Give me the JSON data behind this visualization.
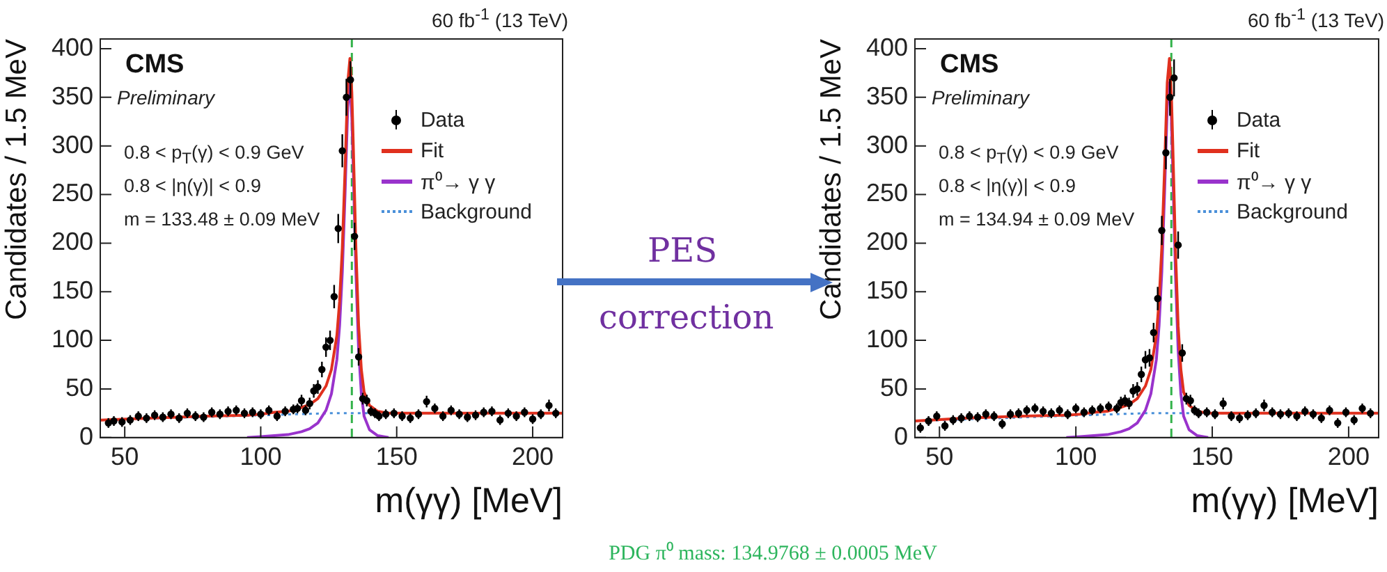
{
  "chart_data": [
    {
      "type": "line",
      "title": "CMS",
      "subtitle": "Preliminary",
      "xlabel": "m(γγ) [MeV]",
      "ylabel": "Candidates / 1.5 MeV",
      "annotations": [
        "60 fb$^{-1}$ (13 TeV)",
        "0.8 < p$_{T}$(γ) < 0.9 GeV",
        "0.8 < |η(γ)| < 0.9",
        "m = 133.48 ± 0.09 MeV"
      ],
      "xlim": [
        41,
        211
      ],
      "xticks": [
        50,
        100,
        150,
        200
      ],
      "ylim": [
        0,
        410
      ],
      "yticks": [
        0,
        50,
        100,
        150,
        200,
        250,
        300,
        350,
        400
      ],
      "grid": false,
      "legend": "top right",
      "ref_lines": [
        {
          "axis": "x",
          "value": 133.5,
          "color": "#33b24a",
          "line_style": "dashed"
        }
      ],
      "series": [
        {
          "name": "Background",
          "type": "line",
          "color": "#4a90d9",
          "line_style": "dotted",
          "marker": "none",
          "x": [
            41,
            125,
            211
          ],
          "values": [
            18,
            25,
            25
          ]
        },
        {
          "name": "π⁰→ γ γ",
          "type": "line",
          "color": "#9933cc",
          "line_style": "solid",
          "marker": "none",
          "x": [
            95,
            100,
            105,
            110,
            115,
            118,
            121,
            124,
            126,
            128,
            129,
            130,
            131,
            132,
            132.8,
            133.5,
            134,
            135,
            136,
            137,
            138,
            140,
            143,
            147
          ],
          "values": [
            0,
            1,
            2,
            3,
            6,
            9,
            15,
            28,
            45,
            80,
            115,
            170,
            250,
            340,
            365,
            330,
            280,
            170,
            90,
            45,
            22,
            8,
            2,
            0
          ]
        },
        {
          "name": "Fit",
          "type": "line",
          "color": "#e0301e",
          "line_style": "solid",
          "marker": "none",
          "x": [
            41,
            60,
            80,
            95,
            100,
            105,
            110,
            115,
            118,
            121,
            124,
            126,
            128,
            129,
            130,
            131,
            132,
            132.8,
            133.5,
            134,
            135,
            136,
            137,
            138,
            140,
            143,
            147,
            160,
            211
          ],
          "values": [
            18,
            20,
            22,
            23,
            24,
            26,
            27,
            31,
            34,
            40,
            53,
            70,
            105,
            140,
            195,
            275,
            365,
            390,
            355,
            305,
            195,
            115,
            70,
            47,
            33,
            27,
            25,
            25,
            25
          ]
        },
        {
          "name": "Data",
          "type": "scatter",
          "color": "#000000",
          "marker": "circle",
          "x": [
            44,
            46,
            49,
            52,
            55,
            58,
            61,
            64,
            67,
            70,
            73,
            76,
            79,
            82,
            85,
            88,
            91,
            94,
            97,
            100,
            103,
            106,
            109,
            112,
            113.5,
            115,
            116.5,
            118,
            119.5,
            121,
            122.5,
            124,
            125.5,
            127,
            128.5,
            130,
            131.5,
            133,
            134.5,
            136,
            137.5,
            139,
            140.5,
            142,
            143.5,
            146,
            149,
            152,
            155,
            158,
            161,
            164,
            167,
            170,
            173,
            176,
            179,
            182,
            185,
            188,
            191,
            194,
            197,
            200,
            203,
            206,
            208.5
          ],
          "values": [
            15,
            17,
            16,
            18,
            22,
            20,
            23,
            21,
            24,
            20,
            25,
            22,
            21,
            26,
            24,
            27,
            28,
            25,
            26,
            24,
            28,
            22,
            27,
            29,
            30,
            38,
            28,
            35,
            48,
            52,
            70,
            93,
            100,
            145,
            215,
            295,
            350,
            368,
            207,
            83,
            40,
            38,
            27,
            25,
            22,
            24,
            25,
            22,
            20,
            24,
            37,
            30,
            22,
            28,
            24,
            21,
            23,
            26,
            27,
            18,
            25,
            22,
            26,
            19,
            24,
            33,
            25
          ],
          "errors": [
            5,
            5,
            5,
            5,
            5,
            5,
            5,
            5,
            5,
            5,
            5,
            5,
            5,
            5,
            5,
            5,
            5,
            5,
            5,
            5,
            5,
            5,
            5,
            5,
            5,
            6,
            5,
            6,
            7,
            7,
            8,
            10,
            10,
            12,
            15,
            17,
            19,
            19,
            14,
            9,
            6,
            6,
            5,
            5,
            5,
            5,
            5,
            5,
            5,
            5,
            6,
            5,
            5,
            5,
            5,
            5,
            5,
            5,
            5,
            5,
            5,
            5,
            5,
            5,
            5,
            6,
            5
          ]
        }
      ]
    },
    {
      "type": "line",
      "title": "CMS",
      "subtitle": "Preliminary",
      "xlabel": "m(γγ) [MeV]",
      "ylabel": "Candidates / 1.5 MeV",
      "annotations": [
        "60 fb$^{-1}$ (13 TeV)",
        "0.8 < p$_{T}$(γ) < 0.9 GeV",
        "0.8 < |η(γ)| < 0.9",
        "m = 134.94 ± 0.09 MeV"
      ],
      "xlim": [
        41,
        211
      ],
      "xticks": [
        50,
        100,
        150,
        200
      ],
      "ylim": [
        0,
        410
      ],
      "yticks": [
        0,
        50,
        100,
        150,
        200,
        250,
        300,
        350,
        400
      ],
      "grid": false,
      "legend": "top right",
      "ref_lines": [
        {
          "axis": "x",
          "value": 135,
          "color": "#33b24a",
          "line_style": "dashed"
        }
      ],
      "series": [
        {
          "name": "Background",
          "type": "line",
          "color": "#4a90d9",
          "line_style": "dotted",
          "marker": "none",
          "x": [
            41,
            125,
            211
          ],
          "values": [
            17,
            25,
            25
          ]
        },
        {
          "name": "π⁰→ γ γ",
          "type": "line",
          "color": "#9933cc",
          "line_style": "solid",
          "marker": "none",
          "x": [
            96.5,
            101.5,
            106.5,
            111.5,
            116.5,
            119.5,
            122.5,
            125.5,
            127.5,
            129.5,
            130.5,
            131.5,
            132.5,
            133.5,
            134.3,
            135,
            135.5,
            136.5,
            137.5,
            138.5,
            139.5,
            141.5,
            144.5,
            148.5
          ],
          "values": [
            0,
            1,
            2,
            3,
            6,
            9,
            15,
            28,
            45,
            80,
            115,
            170,
            250,
            340,
            365,
            330,
            280,
            170,
            90,
            45,
            22,
            8,
            2,
            0
          ]
        },
        {
          "name": "Fit",
          "type": "line",
          "color": "#e0301e",
          "line_style": "solid",
          "marker": "none",
          "x": [
            41,
            60,
            80,
            96.5,
            101.5,
            106.5,
            111.5,
            116.5,
            119.5,
            122.5,
            125.5,
            127.5,
            129.5,
            130.5,
            131.5,
            132.5,
            133.5,
            134.3,
            135,
            135.5,
            136.5,
            137.5,
            138.5,
            139.5,
            141.5,
            144.5,
            148.5,
            160,
            211
          ],
          "values": [
            17,
            20,
            22,
            23,
            24,
            26,
            27,
            31,
            34,
            40,
            53,
            70,
            105,
            140,
            195,
            275,
            365,
            390,
            355,
            305,
            195,
            115,
            70,
            47,
            33,
            27,
            25,
            25,
            25
          ]
        },
        {
          "name": "Data",
          "type": "scatter",
          "color": "#000000",
          "marker": "circle",
          "x": [
            43,
            46,
            49,
            52,
            55,
            58,
            61,
            64,
            67,
            70,
            73,
            76,
            79,
            82,
            85,
            88,
            91,
            94,
            97,
            100,
            103,
            106,
            109,
            112,
            115,
            116.5,
            118,
            119.5,
            121,
            122.5,
            124,
            125.5,
            127,
            128.5,
            130,
            131.5,
            133,
            134.5,
            136,
            137.5,
            139,
            140.5,
            142,
            143.5,
            145,
            148,
            151,
            154,
            157,
            160,
            163,
            166,
            169,
            172,
            175,
            178,
            181,
            184,
            187,
            190,
            193,
            196,
            199,
            202,
            205,
            208
          ],
          "values": [
            10,
            17,
            22,
            12,
            18,
            20,
            22,
            21,
            24,
            22,
            14,
            24,
            25,
            28,
            30,
            27,
            25,
            28,
            24,
            30,
            26,
            28,
            30,
            32,
            30,
            36,
            38,
            35,
            48,
            50,
            65,
            80,
            82,
            108,
            143,
            213,
            293,
            350,
            370,
            198,
            87,
            40,
            38,
            28,
            25,
            26,
            24,
            35,
            22,
            20,
            23,
            25,
            33,
            26,
            24,
            25,
            22,
            27,
            24,
            20,
            28,
            15,
            26,
            18,
            30,
            25
          ],
          "errors": [
            5,
            5,
            5,
            5,
            5,
            5,
            5,
            5,
            5,
            5,
            5,
            5,
            5,
            5,
            5,
            5,
            5,
            5,
            5,
            5,
            5,
            5,
            5,
            5,
            5,
            6,
            6,
            6,
            7,
            7,
            8,
            9,
            9,
            10,
            12,
            15,
            17,
            19,
            19,
            14,
            9,
            6,
            6,
            5,
            5,
            5,
            5,
            6,
            5,
            5,
            5,
            5,
            6,
            5,
            5,
            5,
            5,
            5,
            5,
            5,
            5,
            5,
            5,
            5,
            5,
            5
          ]
        }
      ]
    },
    {
      "type": "other",
      "annotations": [
        "PES correction",
        "PDG π⁰ mass: 134.9768 ± 0.0005 MeV"
      ]
    }
  ]
}
